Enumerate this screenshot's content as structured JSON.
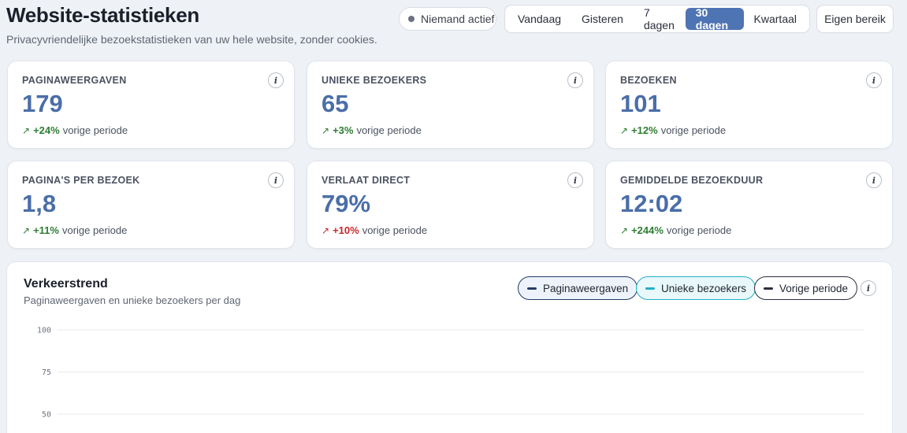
{
  "header": {
    "title": "Website-statistieken",
    "subtitle": "Privacyvriendelijke bezoekstatistieken van uw hele website, zonder cookies.",
    "live_status": "Niemand actief",
    "ranges": [
      "Vandaag",
      "Gisteren",
      "7 dagen",
      "30 dagen",
      "Kwartaal"
    ],
    "active_range": "30 dagen",
    "custom_range": "Eigen bereik"
  },
  "cards": [
    {
      "label": "PAGINAWEERGAVEN",
      "value": "179",
      "arrow": "↗",
      "delta": "+24%",
      "suffix": "vorige periode",
      "tone": "up"
    },
    {
      "label": "UNIEKE BEZOEKERS",
      "value": "65",
      "arrow": "↗",
      "delta": "+3%",
      "suffix": "vorige periode",
      "tone": "up"
    },
    {
      "label": "BEZOEKEN",
      "value": "101",
      "arrow": "↗",
      "delta": "+12%",
      "suffix": "vorige periode",
      "tone": "up"
    },
    {
      "label": "PAGINA'S PER BEZOEK",
      "value": "1,8",
      "arrow": "↗",
      "delta": "+11%",
      "suffix": "vorige periode",
      "tone": "up"
    },
    {
      "label": "VERLAAT DIRECT",
      "value": "79%",
      "arrow": "↗",
      "delta": "+10%",
      "suffix": "vorige periode",
      "tone": "bad"
    },
    {
      "label": "GEMIDDELDE BEZOEKDUUR",
      "value": "12:02",
      "arrow": "↗",
      "delta": "+244%",
      "suffix": "vorige periode",
      "tone": "up"
    }
  ],
  "info_glyph": "i",
  "traffic": {
    "title": "Verkeerstrend",
    "subtitle": "Paginaweergaven en unieke bezoekers per dag",
    "legend": {
      "pageviews": "Paginaweergaven",
      "unique": "Unieke bezoekers",
      "previous": "Vorige periode"
    }
  },
  "colors": {
    "accent": "#4f74b3",
    "pageviews": "#233a66",
    "unique": "#22b0c8",
    "positive": "#2e7d32",
    "negative": "#c62828"
  },
  "chart_data": {
    "type": "line",
    "title": "Verkeerstrend",
    "subtitle": "Paginaweergaven en unieke bezoekers per dag",
    "xlabel": "",
    "ylabel": "",
    "y_ticks": [
      100,
      75,
      50
    ],
    "ylim_visible": [
      50,
      100
    ],
    "grid": true,
    "legend_position": "top-right",
    "series": [
      {
        "name": "Paginaweergaven",
        "values": []
      },
      {
        "name": "Unieke bezoekers",
        "values": []
      },
      {
        "name": "Vorige periode",
        "values": []
      }
    ]
  }
}
